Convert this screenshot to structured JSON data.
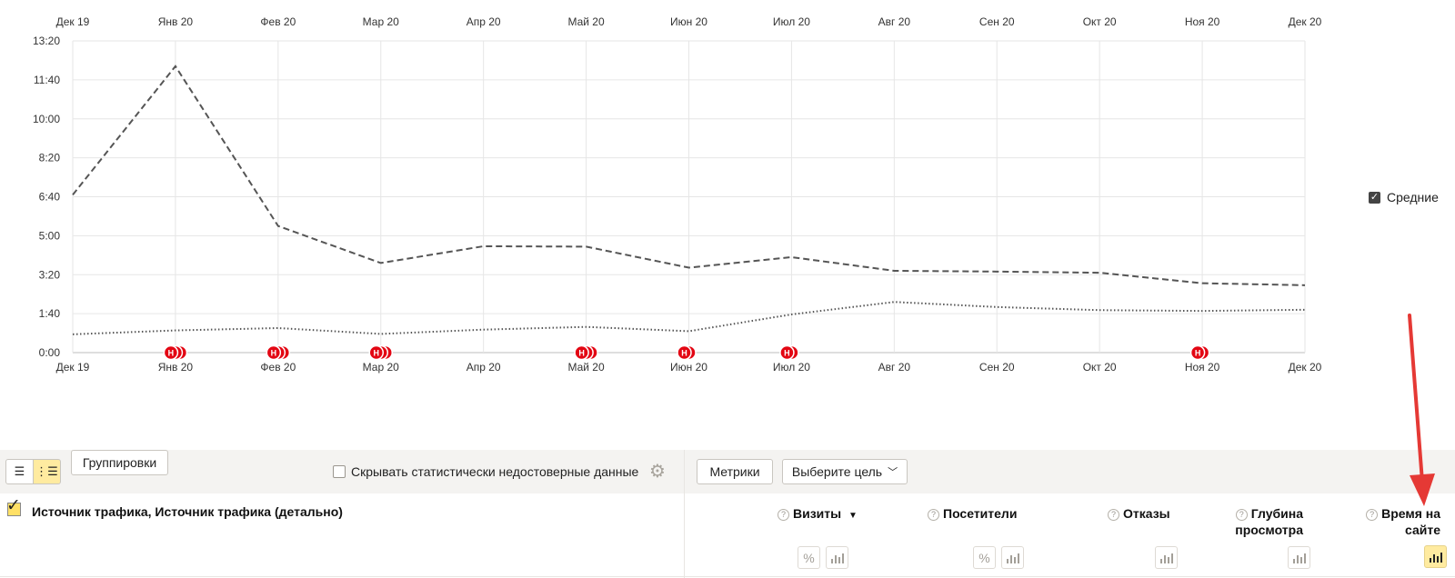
{
  "chart_data": {
    "type": "line",
    "x": [
      "Дек 19",
      "Янв 20",
      "Фев 20",
      "Мар 20",
      "Апр 20",
      "Май 20",
      "Июн 20",
      "Июл 20",
      "Авг 20",
      "Сен 20",
      "Окт 20",
      "Ноя 20",
      "Дек 20"
    ],
    "y_ticks": [
      "0:00",
      "1:40",
      "3:20",
      "5:00",
      "6:40",
      "8:20",
      "10:00",
      "11:40",
      "13:20"
    ],
    "ylim_seconds": [
      0,
      800
    ],
    "grid": true,
    "series": [
      {
        "style": "dashed",
        "values_seconds": [
          405,
          735,
          325,
          230,
          273,
          272,
          218,
          245,
          210,
          208,
          205,
          178,
          173
        ]
      },
      {
        "style": "dotted",
        "values_seconds": [
          47,
          57,
          63,
          48,
          59,
          66,
          55,
          98,
          130,
          117,
          109,
          107,
          110
        ]
      }
    ],
    "annotation_markers": [
      {
        "x": "Янв 20",
        "count": 3
      },
      {
        "x": "Фев 20",
        "count": 3
      },
      {
        "x": "Мар 20",
        "count": 3
      },
      {
        "x": "Май 20",
        "count": 3
      },
      {
        "x": "Июн 20",
        "count": 2
      },
      {
        "x": "Июл 20",
        "count": 2
      },
      {
        "x": "Ноя 20",
        "count": 2
      }
    ],
    "marker_letter": "Н",
    "marker_color": "#e30613",
    "legend": {
      "label": "Средние",
      "checked": true,
      "placement": "right"
    }
  },
  "toolbar": {
    "groupings_label": "Группировки",
    "hide_unreliable_label": "Скрывать статистически недостоверные данные",
    "metrics_label": "Метрики",
    "goal_select_value": "Выберите цель"
  },
  "table": {
    "dimensions_header": "Источник трафика, Источник трафика (детально)",
    "columns": [
      {
        "label": "Визиты",
        "sort": "▼",
        "sorted": true
      },
      {
        "label": "Посетители"
      },
      {
        "label": "Отказы"
      },
      {
        "label_line1": "Глубина",
        "label_line2": "просмотра"
      },
      {
        "label_line1": "Время на",
        "label_line2": "сайте"
      }
    ]
  },
  "colors": {
    "toolbar_bg": "#f4f3f1",
    "active_yellow": "#ffeba0",
    "annotation_arrow": "#e53935"
  }
}
